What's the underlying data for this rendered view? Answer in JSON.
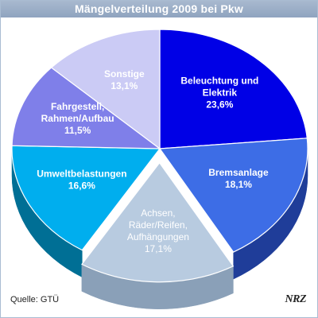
{
  "title": "Mängelverteilung 2009 bei Pkw",
  "source": "Quelle: GTÜ",
  "logo": "NRZ",
  "chart_data": {
    "type": "pie",
    "title": "Mängelverteilung 2009 bei Pkw",
    "unit": "%",
    "slices": [
      {
        "label": [
          "Beleuchtung und",
          "Elektrik"
        ],
        "value": 23.6,
        "value_text": "23,6%",
        "color": "#0000e6",
        "side": "#00009a",
        "text_color": "#ffffff"
      },
      {
        "label": [
          "Bremsanlage"
        ],
        "value": 18.1,
        "value_text": "18,1%",
        "color": "#3d6de6",
        "side": "#1f3d99",
        "text_color": "#ffffff"
      },
      {
        "label": [
          "Achsen,",
          "Räder/Reifen,",
          "Aufhängungen"
        ],
        "value": 17.1,
        "value_text": "17,1%",
        "color": "#b8cbe0",
        "side": "#8aa0b8",
        "text_color": "#ffffff",
        "exploded": true
      },
      {
        "label": [
          "Umweltbelastungen"
        ],
        "value": 16.6,
        "value_text": "16,6%",
        "color": "#00aeee",
        "side": "#006f95",
        "text_color": "#ffffff"
      },
      {
        "label": [
          "Fahrgestell,",
          "Rahmen/Aufbau"
        ],
        "value": 11.5,
        "value_text": "11,5%",
        "color": "#7f7fe9",
        "side": "#4f4fb0",
        "text_color": "#ffffff"
      },
      {
        "label": [
          "Sonstige"
        ],
        "value": 13.1,
        "value_text": "13,1%",
        "color": "#cbcbf5",
        "side": "#9a9ad0",
        "text_color": "#ffffff"
      }
    ]
  }
}
